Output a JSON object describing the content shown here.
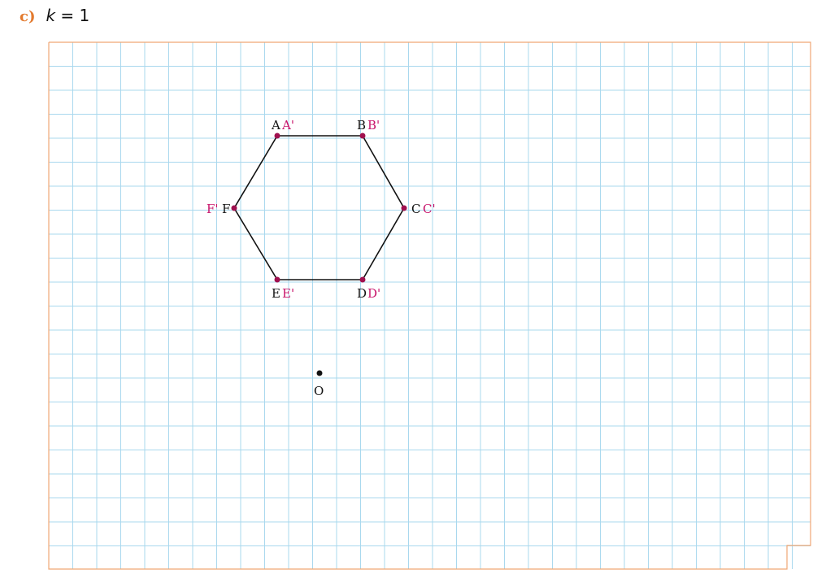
{
  "heading": {
    "part": "c)",
    "variable": "k",
    "equals": " = 1"
  },
  "colors": {
    "grid": "#a9d8ee",
    "frame": "#f0a774",
    "original": "#111111",
    "image": "#c8136a",
    "point": "#a0104f"
  },
  "scale_factor": 1,
  "hexagon": {
    "vertices": [
      {
        "name": "A",
        "image": "A'"
      },
      {
        "name": "B",
        "image": "B'"
      },
      {
        "name": "C",
        "image": "C'"
      },
      {
        "name": "D",
        "image": "D'"
      },
      {
        "name": "E",
        "image": "E'"
      },
      {
        "name": "F",
        "image": "F'"
      }
    ]
  },
  "center": {
    "name": "O"
  }
}
